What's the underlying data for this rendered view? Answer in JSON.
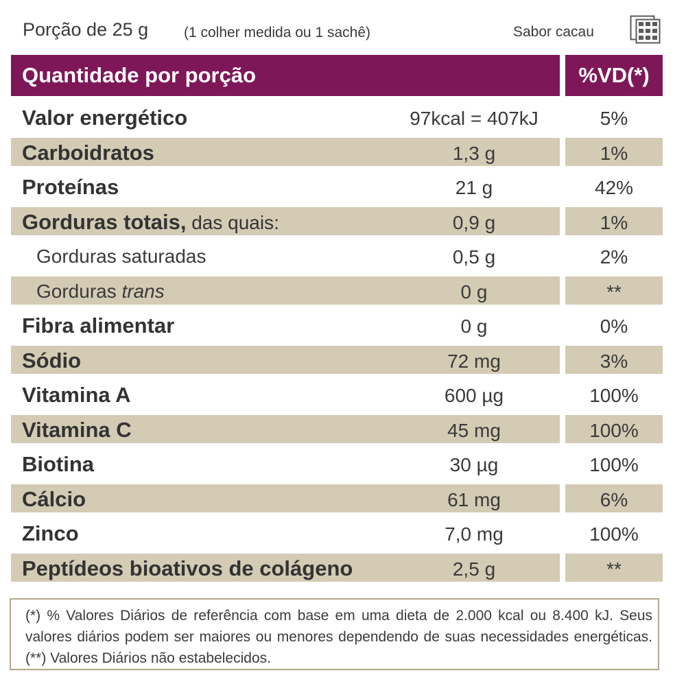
{
  "top": {
    "serving": "Porção de 25 g",
    "measure": "(1 colher medida ou 1 sachê)",
    "flavor": "Sabor cacau",
    "icon": "chocolate-bar-icon"
  },
  "header": {
    "title": "Quantidade por porção",
    "vd": "%VD(*)"
  },
  "rows": [
    {
      "name": "Valor energético",
      "qty": "97kcal = 407kJ",
      "vd": "5%"
    },
    {
      "name": "Carboidratos",
      "qty": "1,3 g",
      "vd": "1%"
    },
    {
      "name": "Proteínas",
      "qty": "21 g",
      "vd": "42%"
    },
    {
      "name": "Gorduras totais,",
      "extra": " das quais:",
      "qty": "0,9 g",
      "vd": "1%"
    },
    {
      "name": "Gorduras saturadas",
      "qty": "0,5 g",
      "vd": "2%"
    },
    {
      "name": "Gorduras",
      "name_italic": "trans",
      "qty": "0 g",
      "vd": "**"
    },
    {
      "name": "Fibra alimentar",
      "qty": "0 g",
      "vd": "0%"
    },
    {
      "name": "Sódio",
      "qty": "72 mg",
      "vd": "3%"
    },
    {
      "name": "Vitamina A",
      "qty": "600 µg",
      "vd": "100%"
    },
    {
      "name": "Vitamina C",
      "qty": "45 mg",
      "vd": "100%"
    },
    {
      "name": "Biotina",
      "qty": "30 µg",
      "vd": "100%"
    },
    {
      "name": "Cálcio",
      "qty": "61 mg",
      "vd": "6%"
    },
    {
      "name": "Zinco",
      "qty": "7,0 mg",
      "vd": "100%"
    },
    {
      "name": "Peptídeos bioativos de colágeno",
      "qty": "2,5 g",
      "vd": "**"
    }
  ],
  "footnote": "(*) % Valores Diários de referência com base em uma dieta de 2.000 kcal ou 8.400 kJ. Seus valores diários podem ser maiores ou menores dependendo de suas necessidades energéticas. (**) Valores Diários não estabelecidos.",
  "colors": {
    "header": "#7e1758",
    "shade": "#d4cbb4",
    "border": "#b3a68a"
  }
}
